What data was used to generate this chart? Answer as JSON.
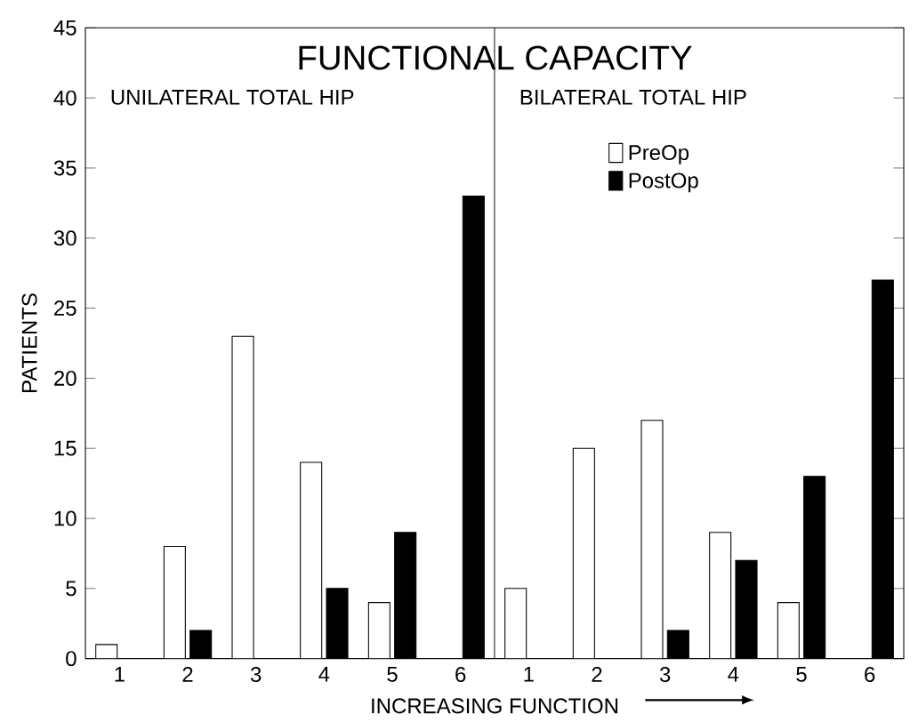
{
  "chart_data": {
    "type": "bar",
    "title": "FUNCTIONAL CAPACITY",
    "xlabel": "INCREASING FUNCTION",
    "ylabel": "PATIENTS",
    "annotations": [
      "UNILATERAL TOTAL HIP",
      "BILATERAL TOTAL HIP"
    ],
    "categories": [
      "1",
      "2",
      "3",
      "4",
      "5",
      "6",
      "1",
      "2",
      "3",
      "4",
      "5",
      "6"
    ],
    "series": [
      {
        "name": "PreOp",
        "color": "#ffffff",
        "values": [
          1,
          8,
          23,
          14,
          4,
          null,
          5,
          15,
          17,
          9,
          4,
          null
        ]
      },
      {
        "name": "PostOp",
        "color": "#000000",
        "values": [
          0,
          2,
          0,
          5,
          9,
          33,
          0,
          0,
          2,
          7,
          13,
          27
        ]
      }
    ],
    "ylim": [
      0,
      45
    ],
    "yticks": [
      0,
      5,
      10,
      15,
      20,
      25,
      30,
      35,
      40,
      45
    ],
    "legend": "top right",
    "grid": false
  }
}
